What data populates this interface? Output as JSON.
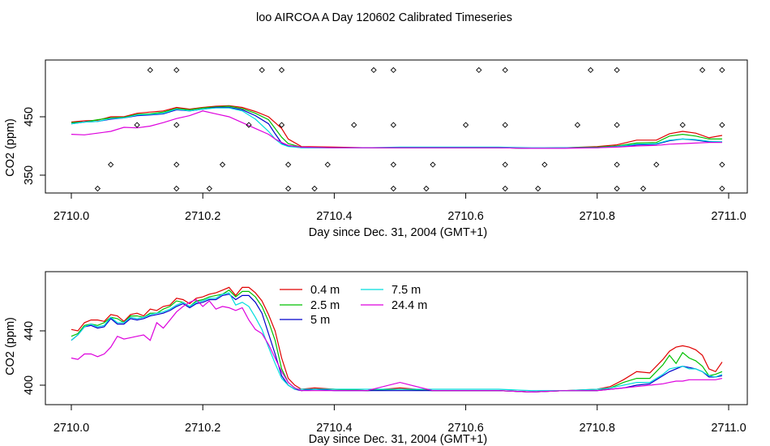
{
  "title": "loo AIRCOA A  Day 120602  Calibrated Timeseries",
  "colors": {
    "0.4 m": "#e00000",
    "2.5 m": "#00c000",
    "5 m": "#0000cc",
    "7.5 m": "#00dddd",
    "24.4 m": "#dd00dd"
  },
  "chart_data": [
    {
      "type": "line",
      "panel": "top",
      "xlabel": "Day since Dec. 31, 2004 (GMT+1)",
      "ylabel": "CO2 (ppm)",
      "xlim": [
        2709.99,
        2711.0
      ],
      "ylim": [
        322,
        537
      ],
      "x_ticks": [
        2710.0,
        2710.2,
        2710.4,
        2710.6,
        2710.8,
        2711.0
      ],
      "x_tick_labels": [
        "2710.0",
        "2710.2",
        "2710.4",
        "2710.6",
        "2710.8",
        "2711.0"
      ],
      "y_ticks": [
        350,
        450
      ],
      "y_tick_labels": [
        "350",
        "450"
      ],
      "legend": null,
      "grid": false,
      "x": [
        2710.0,
        2710.02,
        2710.04,
        2710.06,
        2710.08,
        2710.1,
        2710.12,
        2710.14,
        2710.16,
        2710.18,
        2710.2,
        2710.22,
        2710.24,
        2710.26,
        2710.28,
        2710.3,
        2710.31,
        2710.32,
        2710.33,
        2710.35,
        2710.4,
        2710.45,
        2710.5,
        2710.55,
        2710.6,
        2710.65,
        2710.7,
        2710.75,
        2710.8,
        2710.83,
        2710.86,
        2710.89,
        2710.91,
        2710.93,
        2710.95,
        2710.97,
        2710.99
      ],
      "series": [
        {
          "name": "0.4 m",
          "values": [
            441,
            443,
            444,
            450,
            450,
            456,
            458,
            460,
            466,
            463,
            466,
            468,
            469,
            466,
            459,
            450,
            440,
            430,
            412,
            399,
            398,
            397,
            397,
            397,
            397,
            397,
            396,
            397,
            399,
            402,
            410,
            410,
            421,
            425,
            422,
            414,
            418
          ]
        },
        {
          "name": "2.5 m",
          "values": [
            440,
            441,
            445,
            448,
            449,
            454,
            455,
            458,
            464,
            462,
            465,
            467,
            468,
            464,
            456,
            445,
            430,
            415,
            404,
            398,
            397,
            397,
            397,
            397,
            397,
            397,
            396,
            397,
            398,
            400,
            405,
            406,
            417,
            420,
            417,
            412,
            412
          ]
        },
        {
          "name": "5 m",
          "values": [
            438,
            441,
            442,
            446,
            448,
            452,
            453,
            455,
            462,
            460,
            463,
            466,
            466,
            462,
            452,
            438,
            421,
            405,
            400,
            397,
            397,
            397,
            397,
            397,
            397,
            397,
            396,
            397,
            397,
            399,
            402,
            403,
            409,
            412,
            410,
            407,
            407
          ]
        },
        {
          "name": "7.5 m",
          "values": [
            438,
            441,
            442,
            447,
            448,
            453,
            454,
            456,
            463,
            460,
            463,
            465,
            465,
            460,
            446,
            425,
            412,
            403,
            399,
            397,
            397,
            397,
            398,
            398,
            398,
            398,
            397,
            397,
            397,
            399,
            403,
            404,
            410,
            412,
            411,
            408,
            407
          ]
        },
        {
          "name": "24.4 m",
          "values": [
            420,
            419,
            422,
            425,
            432,
            431,
            434,
            440,
            447,
            452,
            460,
            455,
            450,
            440,
            430,
            420,
            412,
            406,
            401,
            398,
            397,
            397,
            397,
            397,
            397,
            397,
            396,
            396,
            397,
            398,
            400,
            401,
            403,
            404,
            405,
            406,
            406
          ]
        }
      ],
      "markers": {
        "symbol": "diamond",
        "x": [
          2710.12,
          2710.16,
          2710.29,
          2710.32,
          2710.46,
          2710.49,
          2710.62,
          2710.66,
          2710.79,
          2710.83,
          2710.96,
          2710.99,
          2710.1,
          2710.16,
          2710.27,
          2710.32,
          2710.43,
          2710.49,
          2710.6,
          2710.66,
          2710.77,
          2710.83,
          2710.93,
          2710.99,
          2710.06,
          2710.16,
          2710.23,
          2710.33,
          2710.39,
          2710.49,
          2710.55,
          2710.66,
          2710.72,
          2710.83,
          2710.89,
          2710.99,
          2710.04,
          2710.16,
          2710.21,
          2710.33,
          2710.37,
          2710.49,
          2710.54,
          2710.66,
          2710.71,
          2710.83,
          2710.87,
          2710.99
        ],
        "y": [
          530,
          530,
          530,
          530,
          530,
          530,
          530,
          530,
          530,
          530,
          530,
          530,
          436,
          436,
          436,
          436,
          436,
          436,
          436,
          436,
          436,
          436,
          436,
          436,
          368,
          368,
          368,
          368,
          368,
          368,
          368,
          368,
          368,
          368,
          368,
          368,
          327,
          327,
          327,
          327,
          327,
          327,
          327,
          327,
          327,
          327,
          327,
          327
        ]
      }
    },
    {
      "type": "line",
      "panel": "bottom",
      "xlabel": "Day since Dec. 31, 2004 (GMT+1)",
      "ylabel": "CO2 (ppm)",
      "xlim": [
        2709.99,
        2711.0
      ],
      "ylim": [
        392,
        478
      ],
      "x_ticks": [
        2710.0,
        2710.2,
        2710.4,
        2710.6,
        2710.8,
        2711.0
      ],
      "x_tick_labels": [
        "2710.0",
        "2710.2",
        "2710.4",
        "2710.6",
        "2710.8",
        "2711.0"
      ],
      "y_ticks": [
        400,
        440
      ],
      "y_tick_labels": [
        "400",
        "440"
      ],
      "legend": "top-center",
      "grid": false,
      "x": [
        2710.0,
        2710.01,
        2710.02,
        2710.03,
        2710.04,
        2710.05,
        2710.06,
        2710.07,
        2710.08,
        2710.09,
        2710.1,
        2710.11,
        2710.12,
        2710.13,
        2710.14,
        2710.15,
        2710.16,
        2710.17,
        2710.18,
        2710.19,
        2710.2,
        2710.21,
        2710.22,
        2710.23,
        2710.24,
        2710.25,
        2710.26,
        2710.27,
        2710.28,
        2710.29,
        2710.3,
        2710.31,
        2710.32,
        2710.33,
        2710.34,
        2710.35,
        2710.37,
        2710.4,
        2710.45,
        2710.5,
        2710.55,
        2710.6,
        2710.65,
        2710.7,
        2710.75,
        2710.8,
        2710.82,
        2710.84,
        2710.86,
        2710.88,
        2710.9,
        2710.91,
        2710.92,
        2710.93,
        2710.94,
        2710.95,
        2710.96,
        2710.97,
        2710.98,
        2710.99
      ],
      "series": [
        {
          "name": "0.4 m",
          "values": [
            441,
            440,
            446,
            448,
            448,
            447,
            452,
            451,
            447,
            452,
            453,
            451,
            456,
            455,
            458,
            459,
            464,
            463,
            460,
            464,
            465,
            467,
            468,
            470,
            472,
            466,
            472,
            472,
            468,
            462,
            452,
            440,
            420,
            405,
            400,
            397,
            398,
            397,
            396,
            398,
            396,
            396,
            396,
            395,
            396,
            397,
            399,
            404,
            410,
            409,
            419,
            425,
            428,
            429,
            428,
            426,
            422,
            412,
            410,
            417
          ]
        },
        {
          "name": "2.5 m",
          "values": [
            436,
            438,
            444,
            445,
            444,
            446,
            450,
            449,
            446,
            451,
            451,
            450,
            453,
            453,
            456,
            458,
            462,
            461,
            458,
            462,
            463,
            465,
            466,
            467,
            470,
            465,
            469,
            469,
            465,
            458,
            447,
            433,
            412,
            402,
            398,
            396,
            397,
            397,
            396,
            397,
            396,
            396,
            396,
            395,
            396,
            396,
            398,
            402,
            405,
            405,
            415,
            422,
            416,
            424,
            420,
            418,
            414,
            407,
            408,
            410
          ]
        },
        {
          "name": "5 m",
          "values": [
            433,
            437,
            443,
            444,
            442,
            443,
            449,
            445,
            445,
            449,
            448,
            449,
            451,
            452,
            453,
            455,
            458,
            460,
            457,
            460,
            461,
            463,
            463,
            466,
            467,
            463,
            466,
            466,
            461,
            453,
            438,
            423,
            407,
            400,
            397,
            396,
            397,
            396,
            396,
            396,
            396,
            396,
            396,
            395,
            396,
            396,
            397,
            398,
            400,
            401,
            407,
            410,
            412,
            414,
            413,
            412,
            410,
            406,
            406,
            407
          ]
        },
        {
          "name": "7.5 m",
          "values": [
            433,
            437,
            443,
            445,
            443,
            444,
            450,
            446,
            446,
            450,
            449,
            450,
            452,
            453,
            454,
            456,
            459,
            461,
            458,
            461,
            462,
            464,
            464,
            467,
            468,
            459,
            461,
            458,
            450,
            441,
            428,
            416,
            405,
            400,
            397,
            397,
            397,
            397,
            397,
            397,
            397,
            397,
            397,
            396,
            396,
            397,
            398,
            400,
            402,
            402,
            408,
            412,
            413,
            414,
            412,
            412,
            410,
            407,
            406,
            408
          ]
        },
        {
          "name": "24.4 m",
          "values": [
            420,
            419,
            423,
            423,
            421,
            423,
            428,
            436,
            434,
            435,
            436,
            437,
            433,
            446,
            442,
            448,
            454,
            458,
            461,
            463,
            458,
            462,
            456,
            458,
            457,
            455,
            457,
            448,
            441,
            438,
            430,
            420,
            410,
            402,
            398,
            396,
            396,
            396,
            396,
            402,
            396,
            396,
            396,
            395,
            396,
            396,
            397,
            398,
            399,
            400,
            401,
            402,
            403,
            403,
            404,
            404,
            404,
            404,
            404,
            405
          ]
        }
      ]
    }
  ]
}
